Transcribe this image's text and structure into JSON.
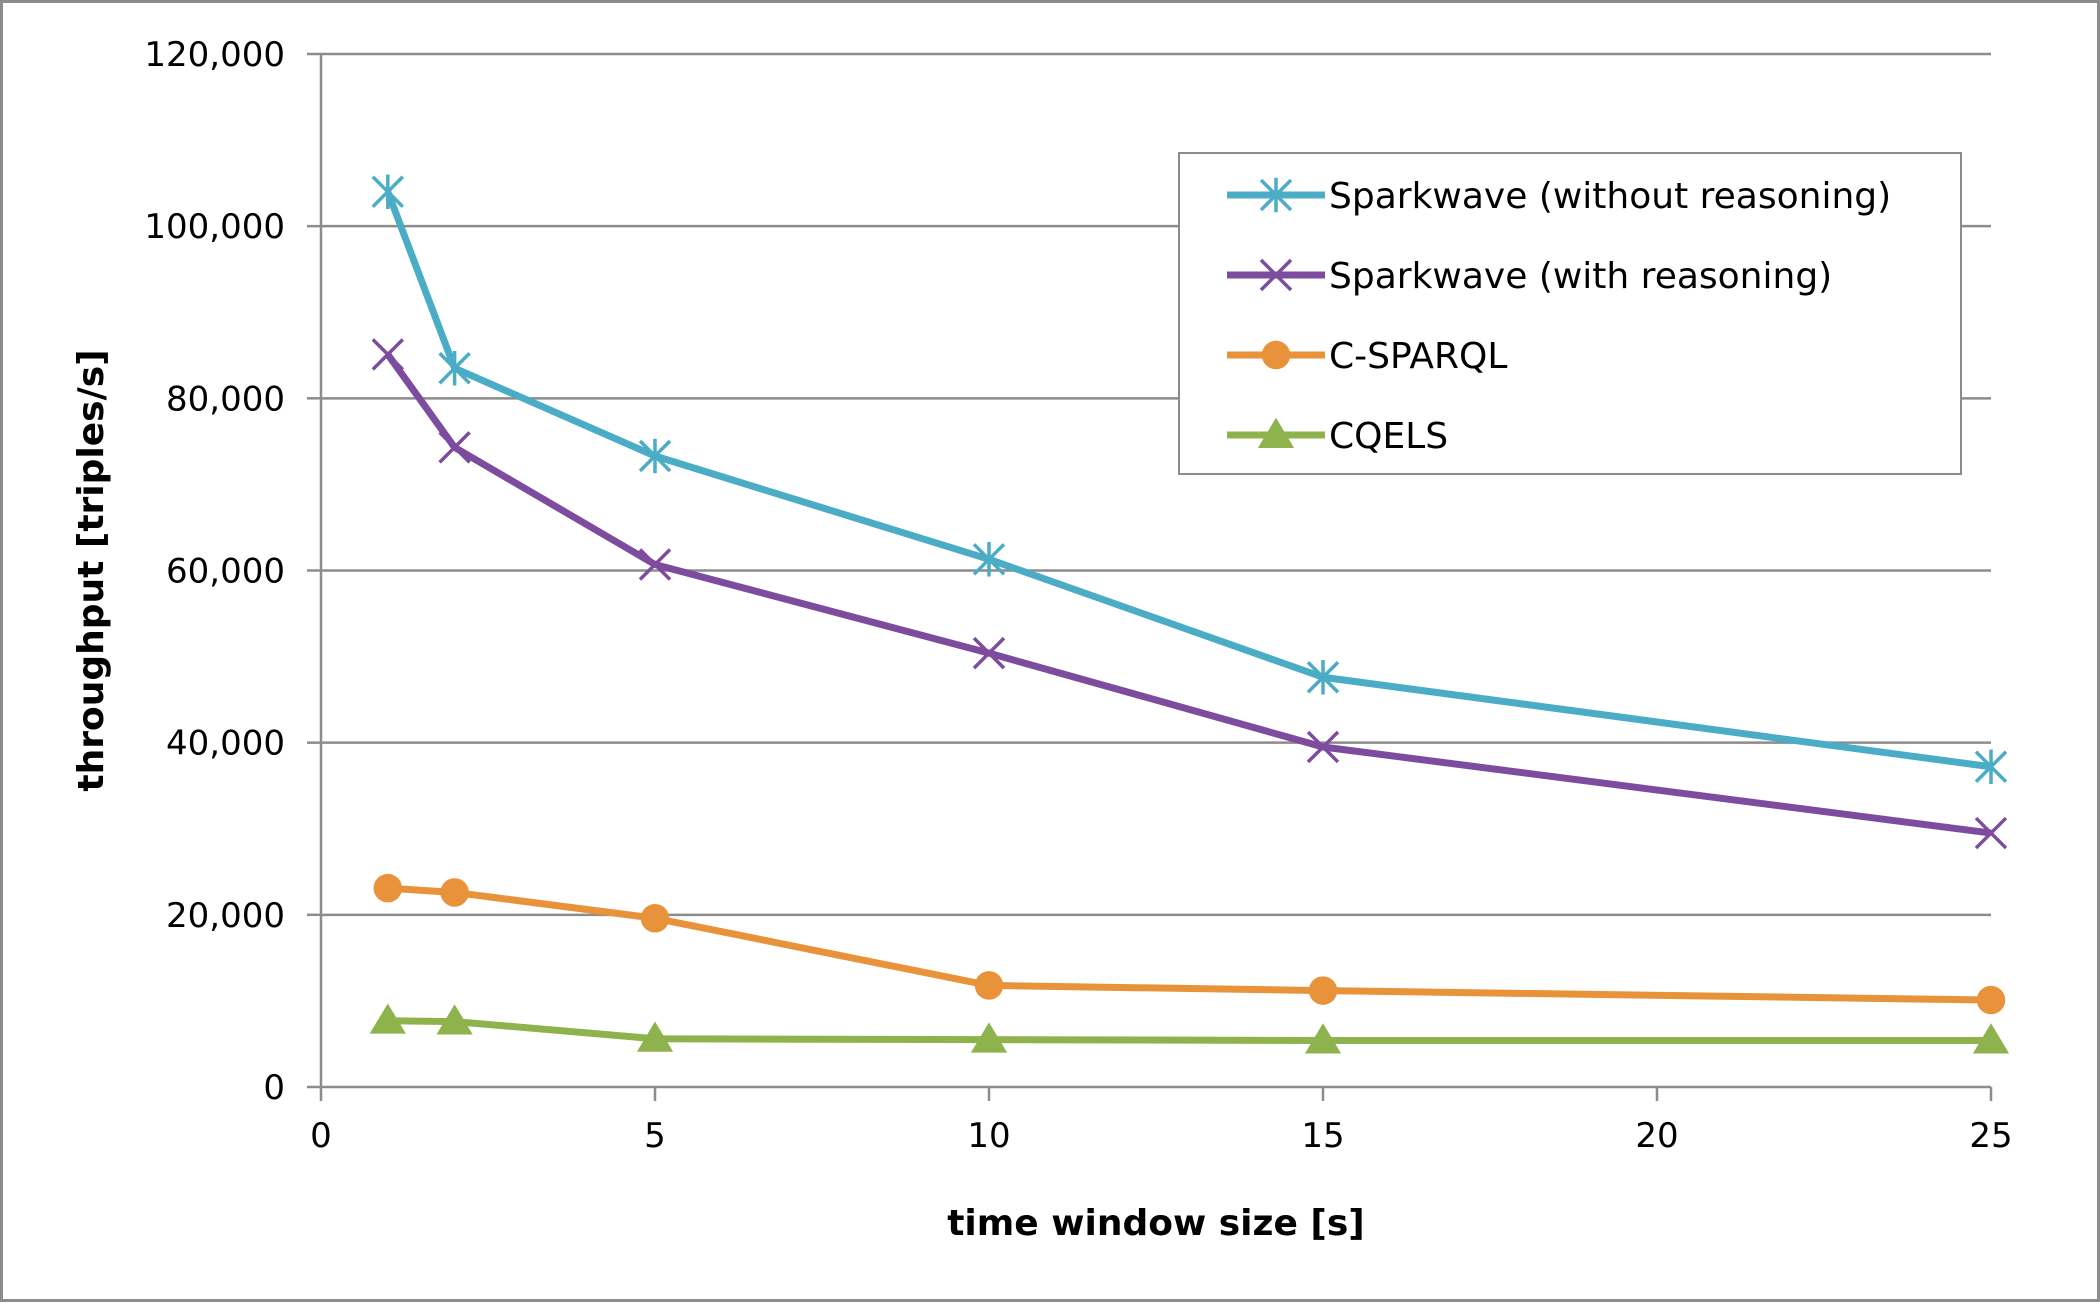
{
  "chart_data": {
    "type": "line",
    "xlabel": "time window size [s]",
    "ylabel": "throughput [triples/s]",
    "xlim": [
      0,
      25
    ],
    "ylim": [
      0,
      120000
    ],
    "xticks": [
      0,
      5,
      10,
      15,
      20,
      25
    ],
    "yticks": [
      0,
      20000,
      40000,
      60000,
      80000,
      100000,
      120000
    ],
    "xtick_labels": [
      "0",
      "5",
      "10",
      "15",
      "20",
      "25"
    ],
    "ytick_labels": [
      "0",
      "20,000",
      "40,000",
      "60,000",
      "80,000",
      "100,000",
      "120,000"
    ],
    "grid": "horizontal",
    "legend_position": "top-right",
    "x": [
      1,
      2,
      5,
      10,
      15,
      25
    ],
    "series": [
      {
        "name": "Sparkwave (without reasoning)",
        "marker": "asterisk",
        "color": "#4BACC6",
        "values": [
          104000,
          83500,
          73300,
          61300,
          47600,
          37200
        ]
      },
      {
        "name": "Sparkwave (with reasoning)",
        "marker": "x",
        "color": "#7D4C9E",
        "values": [
          85100,
          74300,
          60700,
          50400,
          39500,
          29500
        ]
      },
      {
        "name": "C-SPARQL",
        "marker": "circle",
        "color": "#E8923A",
        "values": [
          23100,
          22600,
          19600,
          11800,
          11200,
          10100
        ]
      },
      {
        "name": "CQELS",
        "marker": "triangle",
        "color": "#8EB34C",
        "values": [
          7700,
          7600,
          5600,
          5500,
          5400,
          5400
        ]
      }
    ]
  }
}
